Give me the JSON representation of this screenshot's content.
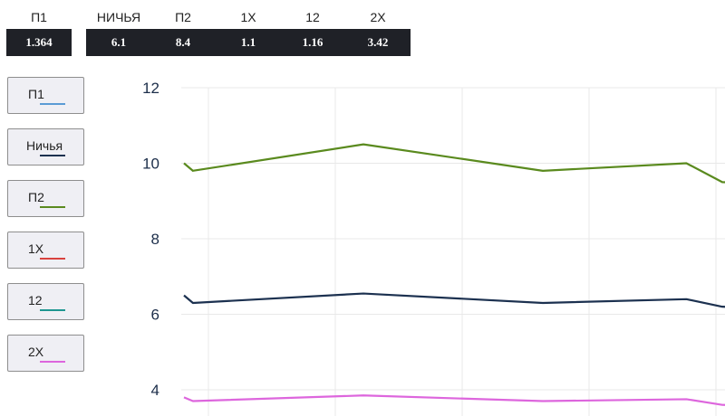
{
  "odds": [
    {
      "label": "П1",
      "value": "1.364"
    },
    {
      "label": "НИЧЬЯ",
      "value": "6.1"
    },
    {
      "label": "П2",
      "value": "8.4"
    },
    {
      "label": "1Х",
      "value": "1.1"
    },
    {
      "label": "12",
      "value": "1.16"
    },
    {
      "label": "2Х",
      "value": "3.42"
    }
  ],
  "legend": [
    {
      "label": "П1",
      "color": "#5b9bd5"
    },
    {
      "label": "Ничья",
      "color": "#1c3150"
    },
    {
      "label": "П2",
      "color": "#5a8a1e"
    },
    {
      "label": "1Х",
      "color": "#d9423e"
    },
    {
      "label": "12",
      "color": "#1e9690"
    },
    {
      "label": "2Х",
      "color": "#dd66dd"
    }
  ],
  "chart_data": {
    "type": "line",
    "ylim": [
      3.7,
      12
    ],
    "y_ticks": [
      "12",
      "10",
      "8",
      "6",
      "4"
    ],
    "x_count": 7,
    "grid": true,
    "series": [
      {
        "name": "П2",
        "color": "#5a8a1e",
        "x": [
          0,
          0.05,
          1,
          2,
          2.8,
          3,
          3.25
        ],
        "values": [
          10.0,
          9.8,
          10.5,
          9.8,
          10.0,
          9.5,
          9.45
        ]
      },
      {
        "name": "Ничья",
        "color": "#1c3150",
        "x": [
          0,
          0.05,
          1,
          2,
          2.8,
          3,
          3.25
        ],
        "values": [
          6.5,
          6.3,
          6.55,
          6.3,
          6.4,
          6.2,
          6.15
        ]
      },
      {
        "name": "2Х",
        "color": "#dd66dd",
        "x": [
          0,
          0.05,
          1,
          2,
          2.8,
          3,
          3.25
        ],
        "values": [
          3.8,
          3.7,
          3.85,
          3.7,
          3.75,
          3.6,
          3.58
        ]
      }
    ]
  }
}
